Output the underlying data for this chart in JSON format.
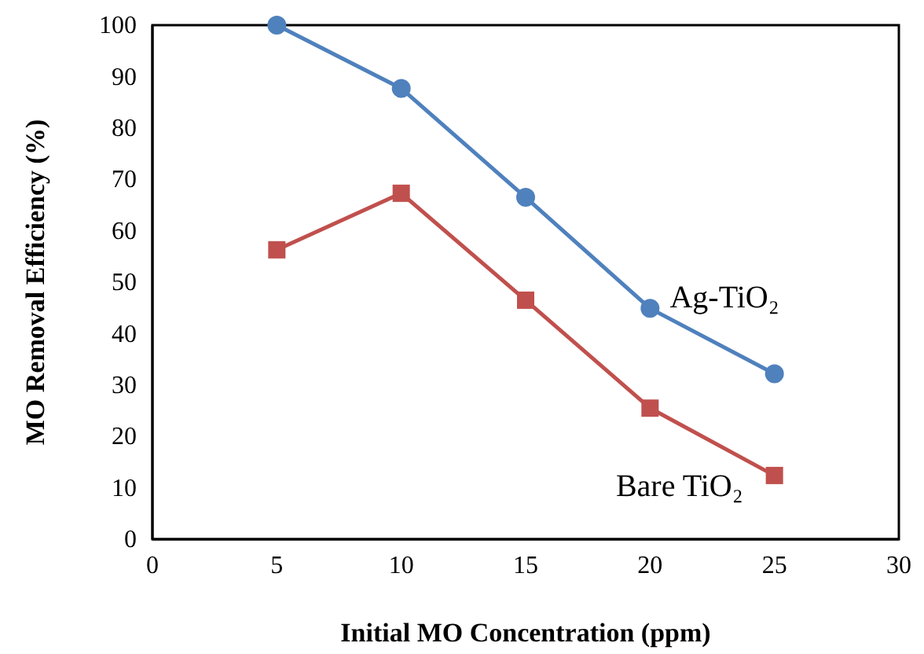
{
  "chart_data": {
    "type": "line",
    "xlabel": "Initial MO Concentration (ppm)",
    "ylabel": "MO Removal Efficiency (%)",
    "x": [
      5,
      10,
      15,
      20,
      25
    ],
    "series": [
      {
        "name": "Ag-TiO₂",
        "color": "#4f81bd",
        "marker": "circle",
        "values": [
          100,
          87.7,
          66.5,
          44.9,
          32.2
        ]
      },
      {
        "name": "Bare TiO₂",
        "color": "#c0504d",
        "marker": "square",
        "values": [
          56.3,
          67.3,
          46.5,
          25.5,
          12.4
        ]
      }
    ],
    "xlim": [
      0,
      30
    ],
    "xticks": [
      0,
      5,
      10,
      15,
      20,
      25,
      30
    ],
    "ylim": [
      0,
      100
    ],
    "yticks": [
      0,
      10,
      20,
      30,
      40,
      50,
      60,
      70,
      80,
      90,
      100
    ],
    "grid": false,
    "line_style": "solid"
  }
}
